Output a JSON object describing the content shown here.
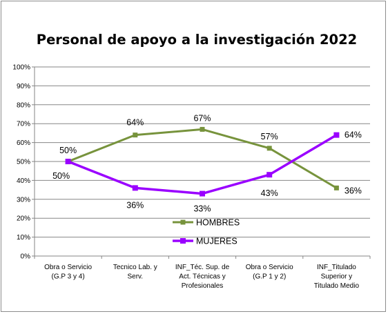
{
  "chart_data": {
    "type": "line",
    "title": "Personal de apoyo a la investigación 2022",
    "categories": [
      [
        "Obra o Servicio",
        "(G.P 3 y 4)"
      ],
      [
        "Tecnico Lab. y",
        "Serv."
      ],
      [
        "INF_Téc. Sup. de",
        "Act. Técnicas y",
        "Profesionales"
      ],
      [
        "Obra o Servicio",
        "(G.P 1 y 2)"
      ],
      [
        "INF_Titulado",
        "Superior y",
        "Titulado Medio"
      ]
    ],
    "ylim": [
      0,
      100
    ],
    "yticks": [
      "0%",
      "10%",
      "20%",
      "30%",
      "40%",
      "50%",
      "60%",
      "70%",
      "80%",
      "90%",
      "100%"
    ],
    "grid": true,
    "legend_position": "inside-center",
    "series": [
      {
        "name": "HOMBRES",
        "color": "#77933c",
        "values": [
          50,
          64,
          67,
          57,
          36
        ],
        "labels": [
          "50%",
          "64%",
          "67%",
          "57%",
          "36%"
        ]
      },
      {
        "name": "MUJERES",
        "color": "#9a00ff",
        "values": [
          50,
          36,
          33,
          43,
          64
        ],
        "labels": [
          "50%",
          "36%",
          "33%",
          "43%",
          "64%"
        ]
      }
    ]
  }
}
